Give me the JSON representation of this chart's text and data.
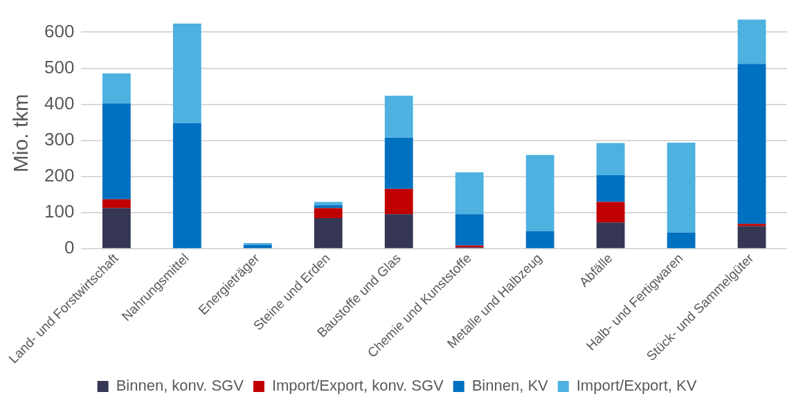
{
  "chart_data": {
    "type": "bar",
    "stacked": true,
    "ylabel": "Mio. tkm",
    "categories": [
      "Land- und Forstwirtschaft",
      "Nahrungsmittel",
      "Energieträger",
      "Steine und Erden",
      "Baustoffe und Glas",
      "Chemie und Kunststoffe",
      "Metalle und Halbzeug",
      "Abfälle",
      "Halb- und Fertigwaren",
      "Stück- und Sammelgüter"
    ],
    "series": [
      {
        "name": "Binnen, konv. SGV",
        "color": "#343654",
        "values": [
          113,
          0,
          0,
          85,
          96,
          4,
          0,
          73,
          0,
          63
        ]
      },
      {
        "name": "Import/Export, konv. SGV",
        "color": "#c00000",
        "values": [
          24,
          0,
          0,
          28,
          70,
          5,
          0,
          57,
          0,
          6
        ]
      },
      {
        "name": "Binnen, KV",
        "color": "#0070c0",
        "values": [
          266,
          348,
          11,
          8,
          142,
          87,
          49,
          74,
          45,
          443
        ]
      },
      {
        "name": "Import/Export, KV",
        "color": "#4eb1e0",
        "values": [
          83,
          276,
          5,
          9,
          116,
          116,
          211,
          89,
          249,
          123
        ]
      }
    ],
    "ylim": [
      0,
      640
    ],
    "yticks": [
      0,
      100,
      200,
      300,
      400,
      500,
      600
    ],
    "grid": "y",
    "legend": "bottom"
  }
}
